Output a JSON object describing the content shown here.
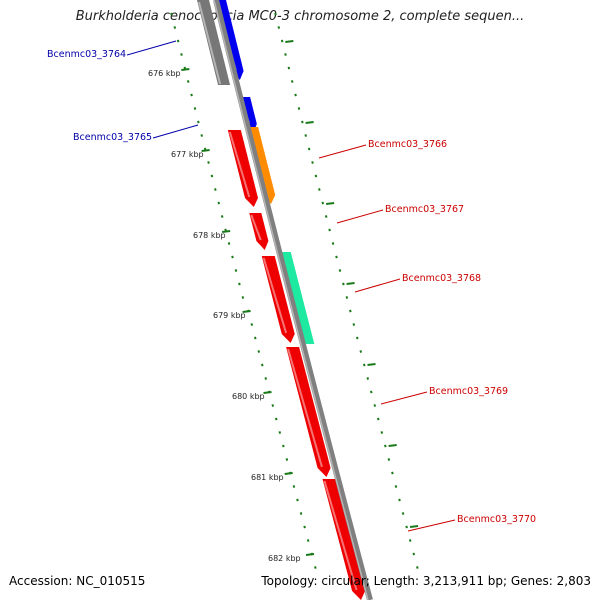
{
  "title": "Burkholderia cenocepacia MC0-3 chromosome 2, complete sequen...",
  "accession": "Accession: NC_010515",
  "summary": "Topology: circular; Length: 3,213,911 bp; Genes: 2,803",
  "colors": {
    "backbone": "#808080",
    "tick": "#1a7a1a",
    "gene_blue": "#0000ee",
    "gene_grey": "#777777",
    "gene_red": "#ee0000",
    "gene_orange": "#ff8c00",
    "gene_teal": "#1de9a0",
    "label_blue": "#0000aa",
    "label_red": "#cc0000"
  },
  "ticks": [
    "676 kbp",
    "677 kbp",
    "678 kbp",
    "679 kbp",
    "680 kbp",
    "681 kbp",
    "682 kbp"
  ],
  "genes": [
    {
      "name": "Bcenmc03_3764",
      "color": "gene_blue",
      "label_color": "label_blue"
    },
    {
      "name": "Bcenmc03_3765",
      "color": "gene_blue",
      "label_color": "label_blue"
    },
    {
      "name": "Bcenmc03_3766",
      "color": "gene_red",
      "label_color": "label_red"
    },
    {
      "name": "Bcenmc03_3767",
      "color": "gene_red",
      "label_color": "label_red"
    },
    {
      "name": "Bcenmc03_3768",
      "color": "gene_red",
      "label_color": "label_red"
    },
    {
      "name": "Bcenmc03_3769",
      "color": "gene_red",
      "label_color": "label_red"
    },
    {
      "name": "Bcenmc03_3770",
      "color": "gene_red",
      "label_color": "label_red"
    }
  ]
}
